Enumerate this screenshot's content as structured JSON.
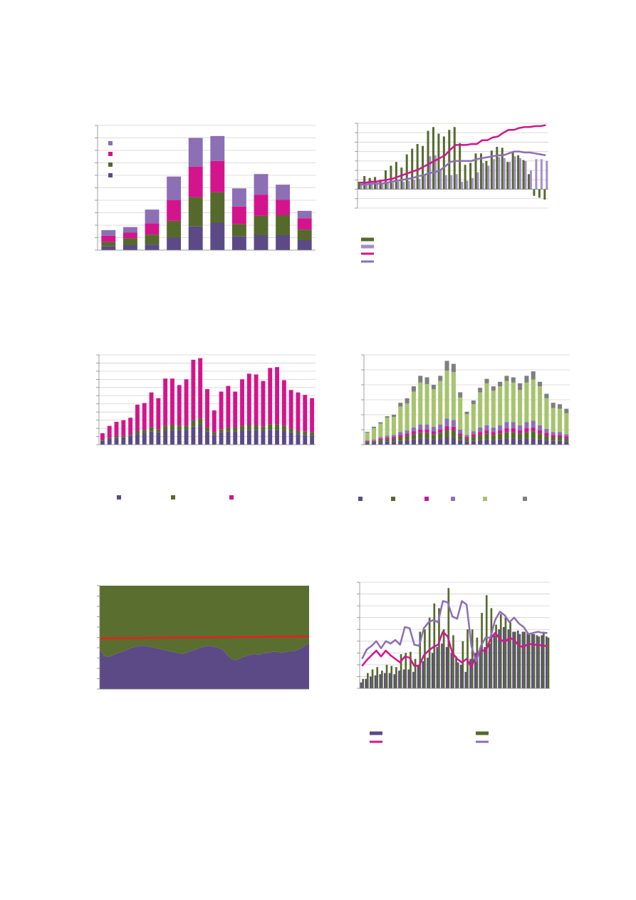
{
  "chart_data": [
    {
      "type": "bar",
      "stacked": true,
      "grid": true,
      "legend": true,
      "ylim": [
        0,
        10
      ],
      "yticks": [
        0,
        1,
        2,
        3,
        4,
        5,
        6,
        7,
        8,
        9,
        10
      ],
      "series": [
        {
          "kind": "bar",
          "color": "#5b4a86",
          "values": [
            0.3,
            0.4,
            0.45,
            1.0,
            1.9,
            2.2,
            1.1,
            1.2,
            1.2,
            0.8
          ]
        },
        {
          "kind": "bar",
          "color": "#56692d",
          "values": [
            0.35,
            0.55,
            0.8,
            1.35,
            2.35,
            2.45,
            1.0,
            1.55,
            1.6,
            0.85
          ]
        },
        {
          "kind": "bar",
          "color": "#d4148c",
          "values": [
            0.5,
            0.45,
            0.9,
            1.65,
            2.45,
            2.5,
            1.4,
            1.7,
            1.25,
            0.9
          ]
        },
        {
          "kind": "bar",
          "color": "#8c6fb5",
          "values": [
            0.45,
            0.45,
            1.1,
            1.9,
            2.3,
            2.0,
            1.45,
            1.65,
            1.2,
            0.6
          ]
        }
      ]
    },
    {
      "type": "combo",
      "stacked": false,
      "grid": true,
      "legend": true,
      "ylim": [
        -2,
        7
      ],
      "yticks": [
        -2,
        -1,
        0,
        1,
        2,
        3,
        4,
        5,
        6,
        7
      ],
      "series": [
        {
          "kind": "bar",
          "color": "#56692d",
          "values": [
            0.8,
            1.4,
            1.2,
            1.3,
            1.0,
            2.0,
            2.5,
            2.9,
            2.3,
            3.7,
            4.3,
            4.8,
            4.6,
            6.2,
            6.6,
            5.9,
            5.6,
            6.3,
            6.6,
            4.9,
            2.6,
            2.8,
            3.8,
            3.8,
            3.0,
            4.1,
            4.5,
            4.4,
            2.9,
            4.0,
            3.6,
            3.1,
            1.6,
            -0.7,
            -0.9,
            -1.1
          ]
        },
        {
          "kind": "bar",
          "color": "#a48fca",
          "values": [
            0.5,
            0.5,
            0.6,
            0.6,
            0.6,
            0.7,
            0.7,
            0.8,
            0.8,
            0.9,
            1.0,
            1.1,
            1.5,
            3.5,
            3.6,
            2.0,
            1.5,
            1.5,
            1.6,
            0.8,
            0.9,
            1.2,
            1.8,
            2.8,
            2.5,
            3.2,
            3.4,
            3.3,
            2.9,
            3.5,
            3.3,
            3.0,
            2.0,
            3.2,
            3.2,
            3.0
          ]
        },
        {
          "kind": "line",
          "color": "#d4148c",
          "values": [
            0.7,
            0.7,
            0.8,
            0.8,
            0.9,
            1.0,
            1.1,
            1.3,
            1.5,
            1.7,
            1.9,
            2.1,
            2.4,
            2.7,
            3.0,
            3.3,
            3.6,
            4.2,
            4.7,
            4.7,
            4.7,
            4.8,
            4.8,
            5.2,
            5.2,
            5.5,
            5.6,
            6.0,
            6.3,
            6.3,
            6.5,
            6.6,
            6.6,
            6.7,
            6.7,
            6.8
          ]
        },
        {
          "kind": "line",
          "color": "#8c6fb5",
          "values": [
            0.5,
            0.5,
            0.6,
            0.6,
            0.6,
            0.7,
            0.8,
            0.9,
            1.0,
            1.1,
            1.2,
            1.4,
            1.5,
            1.7,
            1.8,
            2.0,
            2.4,
            2.9,
            3.0,
            3.0,
            3.0,
            3.0,
            3.2,
            3.3,
            3.4,
            3.5,
            3.6,
            3.6,
            3.8,
            4.0,
            4.0,
            3.9,
            3.9,
            3.8,
            3.7,
            3.6
          ]
        }
      ]
    },
    {
      "type": "bar",
      "stacked": true,
      "grid": true,
      "legend": true,
      "ylim": [
        0,
        11
      ],
      "yticks": [
        0,
        1,
        2,
        3,
        4,
        5,
        6,
        7,
        8,
        9,
        10,
        11
      ],
      "series": [
        {
          "kind": "bar",
          "color": "#5b4a86",
          "values": [
            0.5,
            0.7,
            0.8,
            0.9,
            1.0,
            1.3,
            1.4,
            1.6,
            1.5,
            1.7,
            1.8,
            1.8,
            1.8,
            2.2,
            2.4,
            1.6,
            1.2,
            1.5,
            1.6,
            1.6,
            1.7,
            1.8,
            1.8,
            1.7,
            1.8,
            1.8,
            1.7,
            1.5,
            1.3,
            1.2,
            1.1
          ]
        },
        {
          "kind": "bar",
          "color": "#56692d",
          "values": [
            0.1,
            0.1,
            0.2,
            0.2,
            0.2,
            0.4,
            0.4,
            0.5,
            0.4,
            0.6,
            0.6,
            0.5,
            0.5,
            0.8,
            0.8,
            0.5,
            0.3,
            0.4,
            0.5,
            0.5,
            0.6,
            0.6,
            0.6,
            0.5,
            0.7,
            0.7,
            0.6,
            0.5,
            0.4,
            0.4,
            0.4
          ]
        },
        {
          "kind": "bar",
          "color": "#d4148c",
          "values": [
            0.8,
            1.5,
            1.8,
            1.9,
            2.1,
            3.2,
            3.3,
            4.3,
            3.8,
            5.8,
            5.7,
            5.0,
            5.7,
            7.4,
            7.4,
            4.7,
            2.7,
            4.6,
            5.1,
            4.4,
            5.7,
            6.3,
            6.2,
            5.6,
            6.9,
            7.0,
            5.6,
            4.7,
            4.7,
            4.5,
            4.2
          ]
        }
      ]
    },
    {
      "type": "bar",
      "stacked": true,
      "grid": true,
      "legend": true,
      "ylim": [
        0,
        6
      ],
      "yticks": [
        0,
        1,
        2,
        3,
        4,
        5,
        6
      ],
      "series": [
        {
          "kind": "bar",
          "color": "#5b4a86",
          "values": [
            0.1,
            0.1,
            0.15,
            0.2,
            0.2,
            0.25,
            0.3,
            0.35,
            0.4,
            0.4,
            0.35,
            0.4,
            0.5,
            0.45,
            0.3,
            0.2,
            0.25,
            0.3,
            0.35,
            0.3,
            0.35,
            0.4,
            0.4,
            0.35,
            0.4,
            0.4,
            0.35,
            0.3,
            0.25,
            0.25,
            0.2
          ]
        },
        {
          "kind": "bar",
          "color": "#56692d",
          "values": [
            0.1,
            0.1,
            0.15,
            0.15,
            0.2,
            0.25,
            0.3,
            0.35,
            0.4,
            0.4,
            0.35,
            0.4,
            0.5,
            0.5,
            0.3,
            0.2,
            0.3,
            0.35,
            0.4,
            0.35,
            0.4,
            0.45,
            0.45,
            0.4,
            0.45,
            0.5,
            0.4,
            0.3,
            0.25,
            0.25,
            0.2
          ]
        },
        {
          "kind": "bar",
          "color": "#d4148c",
          "values": [
            0.05,
            0.05,
            0.1,
            0.1,
            0.1,
            0.15,
            0.15,
            0.2,
            0.2,
            0.2,
            0.2,
            0.2,
            0.25,
            0.25,
            0.15,
            0.1,
            0.15,
            0.2,
            0.2,
            0.2,
            0.2,
            0.25,
            0.25,
            0.2,
            0.25,
            0.25,
            0.2,
            0.2,
            0.15,
            0.15,
            0.15
          ]
        },
        {
          "kind": "bar",
          "color": "#8c6fb5",
          "values": [
            0.05,
            0.1,
            0.1,
            0.15,
            0.15,
            0.2,
            0.2,
            0.25,
            0.35,
            0.35,
            0.3,
            0.35,
            0.5,
            0.45,
            0.25,
            0.15,
            0.2,
            0.3,
            0.35,
            0.3,
            0.35,
            0.4,
            0.4,
            0.35,
            0.4,
            0.45,
            0.35,
            0.25,
            0.2,
            0.2,
            0.15
          ]
        },
        {
          "kind": "bar",
          "color": "#a6c46e",
          "values": [
            0.5,
            0.75,
            0.9,
            1.2,
            1.2,
            1.7,
            1.8,
            2.4,
            2.8,
            2.7,
            2.5,
            2.9,
            3.2,
            3.2,
            2.15,
            1.4,
            1.8,
            2.35,
            2.8,
            2.45,
            2.6,
            2.75,
            2.65,
            2.35,
            2.65,
            2.75,
            2.6,
            2.05,
            1.6,
            1.55,
            1.4
          ]
        },
        {
          "kind": "bar",
          "color": "#7f7f7f",
          "values": [
            0.06,
            0.1,
            0.1,
            0.1,
            0.15,
            0.25,
            0.35,
            0.35,
            0.45,
            0.45,
            0.3,
            0.35,
            0.65,
            0.55,
            0.35,
            0.15,
            0.25,
            0.3,
            0.3,
            0.3,
            0.3,
            0.35,
            0.35,
            0.45,
            0.45,
            0.55,
            0.3,
            0.3,
            0.35,
            0.3,
            0.3
          ]
        }
      ]
    },
    {
      "type": "area",
      "stacked": true,
      "grid": true,
      "legend": false,
      "ylim": [
        0,
        100
      ],
      "yticks": [
        0,
        10,
        20,
        30,
        40,
        50,
        60,
        70,
        80,
        90,
        100
      ],
      "series": [
        {
          "kind": "area",
          "color": "#5b4a86",
          "values": [
            39,
            32,
            31,
            33,
            35,
            36,
            38,
            40,
            41,
            42,
            42,
            41,
            40,
            39,
            38,
            37,
            36,
            35,
            34,
            35,
            37,
            38,
            40,
            41,
            42,
            41,
            40,
            38,
            33,
            29,
            28,
            30,
            32,
            33,
            34,
            33,
            35,
            35,
            36,
            36,
            35,
            36,
            37,
            37,
            39,
            42,
            44
          ]
        },
        {
          "kind": "area",
          "color": "#5a6e2f",
          "values": [
            61,
            68,
            69,
            67,
            65,
            64,
            62,
            60,
            59,
            58,
            58,
            59,
            60,
            61,
            62,
            63,
            64,
            65,
            66,
            65,
            63,
            62,
            60,
            59,
            58,
            59,
            60,
            62,
            67,
            71,
            72,
            70,
            68,
            67,
            66,
            67,
            65,
            65,
            64,
            64,
            65,
            64,
            63,
            63,
            61,
            58,
            56
          ]
        },
        {
          "kind": "line",
          "color": "#e8201f",
          "values": [
            49.0,
            49.0,
            49.1,
            49.1,
            49.2,
            49.2,
            49.3,
            49.3,
            49.4,
            49.4,
            49.5,
            49.5,
            49.5,
            49.6,
            49.6,
            49.7,
            49.7,
            49.8,
            49.8,
            49.9,
            49.9,
            50.0,
            50.0,
            50.0,
            50.1,
            50.1,
            50.2,
            50.2,
            50.3,
            50.3,
            50.4,
            50.4,
            50.5,
            50.5,
            50.5,
            50.6,
            50.6,
            50.7,
            50.7,
            50.8,
            50.8,
            50.9,
            50.9,
            51.0,
            51.0,
            51.0,
            51.1
          ]
        }
      ]
    },
    {
      "type": "combo",
      "stacked": false,
      "grid": true,
      "legend": true,
      "ylim": [
        0,
        9
      ],
      "yticks": [
        0,
        1,
        2,
        3,
        4,
        5,
        6,
        7,
        8,
        9
      ],
      "series": [
        {
          "kind": "bar",
          "color": "#5b4a86",
          "values": [
            0.5,
            0.8,
            1.0,
            1.1,
            1.2,
            1.3,
            1.3,
            1.2,
            1.5,
            1.6,
            1.6,
            1.4,
            2.0,
            2.3,
            2.6,
            3.0,
            3.5,
            3.8,
            3.5,
            3.0,
            2.7,
            2.0,
            1.4,
            2.5,
            3.0,
            3.3,
            3.5,
            3.8,
            4.5,
            5.0,
            5.2,
            5.0,
            4.8,
            4.9,
            4.8,
            4.7,
            4.6,
            4.5,
            4.5,
            4.4
          ]
        },
        {
          "kind": "bar",
          "color": "#56692d",
          "values": [
            0.8,
            1.3,
            1.6,
            1.8,
            1.5,
            2.0,
            1.9,
            1.8,
            2.9,
            3.0,
            3.1,
            2.5,
            4.8,
            5.0,
            6.0,
            7.2,
            6.8,
            5.0,
            8.5,
            4.5,
            2.2,
            4.0,
            5.0,
            5.0,
            4.3,
            6.4,
            7.9,
            6.8,
            5.4,
            6.3,
            6.0,
            5.6,
            4.8,
            4.6,
            4.8,
            4.6,
            4.6,
            4.4,
            4.8,
            4.3
          ]
        },
        {
          "kind": "line",
          "color": "#d4148c",
          "values": [
            1.9,
            2.4,
            2.8,
            3.2,
            2.7,
            3.2,
            2.8,
            2.5,
            2.2,
            2.7,
            2.6,
            1.9,
            1.9,
            2.8,
            3.2,
            3.5,
            3.7,
            4.8,
            4.4,
            3.0,
            2.5,
            2.2,
            2.5,
            1.8,
            2.8,
            3.3,
            3.1,
            4.2,
            4.7,
            4.2,
            3.9,
            4.3,
            4.1,
            3.6,
            3.5,
            3.8,
            3.7,
            3.7,
            3.6,
            3.6
          ]
        },
        {
          "kind": "line",
          "color": "#8c6fb5",
          "values": [
            2.5,
            3.3,
            3.6,
            4.0,
            3.4,
            4.0,
            3.8,
            4.1,
            3.7,
            5.2,
            5.1,
            3.7,
            3.6,
            5.1,
            5.6,
            5.8,
            5.6,
            7.4,
            7.3,
            6.1,
            5.9,
            7.4,
            7.1,
            3.6,
            2.3,
            3.6,
            4.3,
            4.3,
            5.8,
            6.5,
            6.2,
            5.6,
            6.0,
            5.5,
            5.2,
            4.6,
            4.7,
            4.8,
            4.7,
            4.7
          ]
        }
      ]
    }
  ]
}
